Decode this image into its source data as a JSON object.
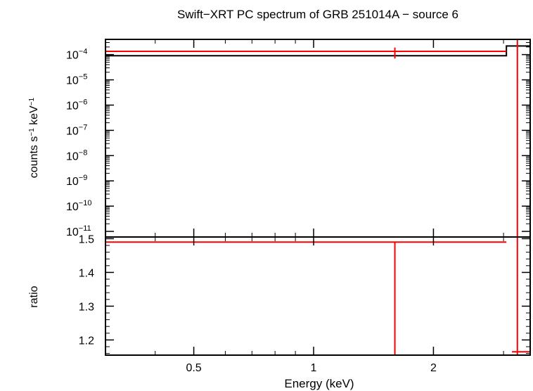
{
  "colors": {
    "model": "#000000",
    "data": "#ff0000",
    "frame": "#000000"
  },
  "chart_data": [
    {
      "type": "line",
      "title": "Swift−XRT PC spectrum of GRB 251014A − source 6",
      "ylabel_main": "counts s",
      "ylabel_exp1": "−1",
      "ylabel_mid": " keV",
      "ylabel_exp2": "−1",
      "xscale": "log",
      "yscale": "log",
      "xlim": [
        0.3,
        3.5
      ],
      "ylim": [
        6e-12,
        0.0004
      ],
      "yticks": [
        {
          "value": 0.0001,
          "base": "10",
          "exp": "−4"
        },
        {
          "value": 1e-05,
          "base": "10",
          "exp": "−5"
        },
        {
          "value": 1e-06,
          "base": "10",
          "exp": "−6"
        },
        {
          "value": 1e-07,
          "base": "10",
          "exp": "−7"
        },
        {
          "value": 1e-08,
          "base": "10",
          "exp": "−8"
        },
        {
          "value": 1e-09,
          "base": "10",
          "exp": "−9"
        },
        {
          "value": 1e-10,
          "base": "10",
          "exp": "−10"
        },
        {
          "value": 1e-11,
          "base": "10",
          "exp": "−11"
        }
      ],
      "series": [
        {
          "role": "model",
          "steps": [
            {
              "x0": 0.3,
              "x1": 3.05,
              "y": 9e-05
            },
            {
              "x0": 3.05,
              "x1": 3.5,
              "y": 0.00022
            }
          ]
        },
        {
          "role": "data",
          "points": [
            {
              "x0": 0.3,
              "x1": 3.05,
              "x": 1.6,
              "y": 0.000135,
              "yerr_lo": 7e-05,
              "yerr_hi": 0.00019
            },
            {
              "x0": 3.15,
              "x1": 3.5,
              "x": 3.25,
              "y": 0.0004,
              "yerr_lo": 6e-12,
              "yerr_hi": 0.0004
            }
          ]
        }
      ]
    },
    {
      "type": "line",
      "ylabel": "ratio",
      "xlabel": "Energy (keV)",
      "xscale": "log",
      "xlim": [
        0.3,
        3.5
      ],
      "ylim": [
        1.155,
        1.505
      ],
      "xticks": [
        {
          "value": 0.5,
          "label": "0.5"
        },
        {
          "value": 1,
          "label": "1"
        },
        {
          "value": 2,
          "label": "2"
        }
      ],
      "yticks": [
        {
          "value": 1.2,
          "label": "1.2"
        },
        {
          "value": 1.3,
          "label": "1.3"
        },
        {
          "value": 1.4,
          "label": "1.4"
        },
        {
          "value": 1.5,
          "label": "1.5"
        }
      ],
      "series": [
        {
          "role": "data",
          "points": [
            {
              "x0": 0.3,
              "x1": 3.05,
              "x": 1.6,
              "y": 1.49,
              "yerr_lo": 1.155,
              "yerr_hi": 1.49
            },
            {
              "x0": 3.15,
              "x1": 3.5,
              "x": 3.25,
              "y": 1.165,
              "yerr_lo": 1.155,
              "yerr_hi": 1.505
            }
          ]
        }
      ]
    }
  ]
}
